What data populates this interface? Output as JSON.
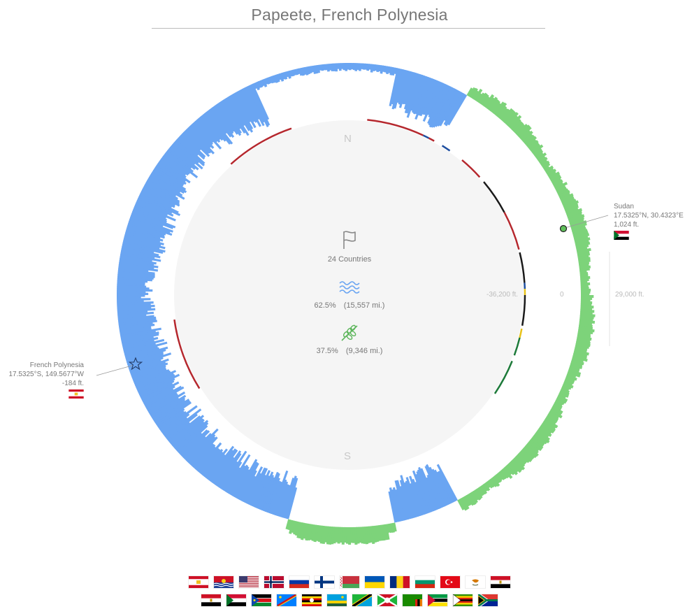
{
  "title": "Papeete, French Polynesia",
  "compass": {
    "north": "N",
    "south": "S"
  },
  "center": {
    "countries_text": "24 Countries",
    "water": {
      "percent": "62.5%",
      "distance": "(15,557 mi.)",
      "color": "#6aa5f2"
    },
    "land": {
      "percent": "37.5%",
      "distance": "(9,346 mi.)",
      "color": "#70c86d"
    }
  },
  "elevation_scale": {
    "min": "-36,200 ft.",
    "zero": "0",
    "max": "29,000 ft."
  },
  "start_point": {
    "name": "French Polynesia",
    "coords": "17.5325°S, 149.5677°W",
    "elevation": "-184 ft.",
    "flag": "french-polynesia"
  },
  "end_point": {
    "name": "Sudan",
    "coords": "17.5325°N, 30.4323°E",
    "elevation": "1,024 ft.",
    "flag": "sudan"
  },
  "colors": {
    "ocean": "#6aa5f2",
    "land": "#7dd37a",
    "ring": "#f3f3f3",
    "border_segments": [
      "#b5282e",
      "#1a1a1a",
      "#1f4fa0",
      "#e8c21a",
      "#1d7a3a"
    ]
  },
  "flags": [
    [
      "french-polynesia",
      "kiribati",
      "united-states",
      "norway",
      "russia",
      "finland",
      "belarus",
      "ukraine",
      "romania",
      "bulgaria",
      "turkey",
      "cyprus",
      "egypt"
    ],
    [
      "egypt",
      "sudan",
      "south-sudan",
      "dr-congo",
      "uganda",
      "rwanda",
      "tanzania",
      "burundi",
      "zambia",
      "mozambique",
      "zimbabwe",
      "south-africa"
    ]
  ]
}
